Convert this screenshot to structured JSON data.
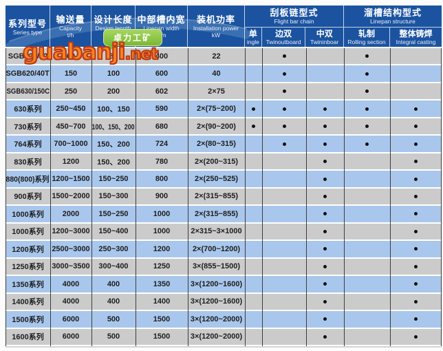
{
  "colors": {
    "page_bg": "#fcfcfc",
    "header_bg": "#1b53a0",
    "header_arc": "#3e72b3",
    "header_text": "#ffffff",
    "row_gray": "#cbcbcb",
    "row_blue": "#a9c7ec",
    "grid_line": "#3c3c3c",
    "cell_text": "#1d1d1d",
    "dot": "#111111",
    "wm_fill": "#f6861f",
    "wm_stroke": "#bf3a17",
    "bubble_green": "#7cb837"
  },
  "watermark": {
    "text_main": "guabanji",
    "text_tld": ".net",
    "bubble_text": "卓力工矿"
  },
  "table": {
    "main_columns": [
      {
        "zh": "系列型号",
        "en": "Series type",
        "unit": ""
      },
      {
        "zh": "输送量",
        "en": "Capacity",
        "unit": "t/h"
      },
      {
        "zh": "设计长度",
        "en": "Design length",
        "unit": "m"
      },
      {
        "zh": "中部槽内宽",
        "en": "Linepan width",
        "unit": "mm"
      },
      {
        "zh": "装机功率",
        "en": "Installation power",
        "unit": "kW"
      }
    ],
    "groups": [
      {
        "zh": "刮板链型式",
        "en": "Flight bar chain",
        "subs": [
          {
            "zh": "单",
            "en": "ingle"
          },
          {
            "zh": "边双",
            "en": "Twinoutboard"
          },
          {
            "zh": "中双",
            "en": "Twininboar"
          }
        ]
      },
      {
        "zh": "溜槽结构型式",
        "en": "Linepan structure",
        "subs": [
          {
            "zh": "轧制",
            "en": "Rolling section"
          },
          {
            "zh": "整体铸焊",
            "en": "Integral casting"
          }
        ]
      }
    ],
    "rows": [
      {
        "series": "SGB420/22",
        "capacity": "60",
        "length": "80",
        "width": "400",
        "power": "22",
        "marks": [
          false,
          true,
          false,
          true,
          false
        ]
      },
      {
        "series": "SGB620/40T",
        "capacity": "150",
        "length": "100",
        "width": "600",
        "power": "40",
        "marks": [
          false,
          true,
          false,
          true,
          false
        ]
      },
      {
        "series": "SGB630/150C",
        "capacity": "250",
        "length": "200",
        "width": "602",
        "power": "2×75",
        "marks": [
          false,
          true,
          false,
          true,
          false
        ]
      },
      {
        "series": "630系列",
        "capacity": "250~450",
        "length": "100、150",
        "width": "590",
        "power": "2×(75~200)",
        "marks": [
          true,
          true,
          true,
          true,
          true
        ]
      },
      {
        "series": "730系列",
        "capacity": "450~700",
        "length": "100、150、200",
        "width": "680",
        "power": "2×(90~200)",
        "marks": [
          true,
          true,
          true,
          true,
          true
        ]
      },
      {
        "series": "764系列",
        "capacity": "700~1000",
        "length": "150、200",
        "width": "724",
        "power": "2×(80~315)",
        "marks": [
          false,
          true,
          true,
          true,
          true
        ]
      },
      {
        "series": "830系列",
        "capacity": "1200",
        "length": "150、200",
        "width": "780",
        "power": "2×(200~315)",
        "marks": [
          false,
          false,
          true,
          false,
          true
        ]
      },
      {
        "series": "880(800)系列",
        "capacity": "1200~1500",
        "length": "150~250",
        "width": "800",
        "power": "2×(250~525)",
        "marks": [
          false,
          false,
          true,
          false,
          true
        ]
      },
      {
        "series": "900系列",
        "capacity": "1500~2000",
        "length": "150~300",
        "width": "900",
        "power": "2×(315~855)",
        "marks": [
          false,
          false,
          true,
          false,
          true
        ]
      },
      {
        "series": "1000系列",
        "capacity": "2000",
        "length": "150~250",
        "width": "1000",
        "power": "2×(315~855)",
        "marks": [
          false,
          false,
          true,
          false,
          true
        ]
      },
      {
        "series": "1000系列",
        "capacity": "1200~3000",
        "length": "150~400",
        "width": "1000",
        "power": "2×315~3×1000",
        "marks": [
          false,
          false,
          true,
          false,
          true
        ]
      },
      {
        "series": "1200系列",
        "capacity": "2500~3000",
        "length": "250~300",
        "width": "1200",
        "power": "2×(700~1200)",
        "marks": [
          false,
          false,
          true,
          false,
          true
        ]
      },
      {
        "series": "1250系列",
        "capacity": "3000~3500",
        "length": "300~400",
        "width": "1250",
        "power": "3×(855~1500)",
        "marks": [
          false,
          false,
          true,
          false,
          true
        ]
      },
      {
        "series": "1350系列",
        "capacity": "4000",
        "length": "400",
        "width": "1350",
        "power": "3×(1200~1600)",
        "marks": [
          false,
          false,
          true,
          false,
          true
        ]
      },
      {
        "series": "1400系列",
        "capacity": "4000",
        "length": "400",
        "width": "1400",
        "power": "3×(1200~1600)",
        "marks": [
          false,
          false,
          true,
          false,
          true
        ]
      },
      {
        "series": "1500系列",
        "capacity": "6000",
        "length": "500",
        "width": "1500",
        "power": "3×(1200~2000)",
        "marks": [
          false,
          false,
          true,
          false,
          true
        ]
      },
      {
        "series": "1600系列",
        "capacity": "6000",
        "length": "500",
        "width": "1500",
        "power": "3×(1200~2000)",
        "marks": [
          false,
          false,
          true,
          false,
          true
        ]
      }
    ]
  }
}
